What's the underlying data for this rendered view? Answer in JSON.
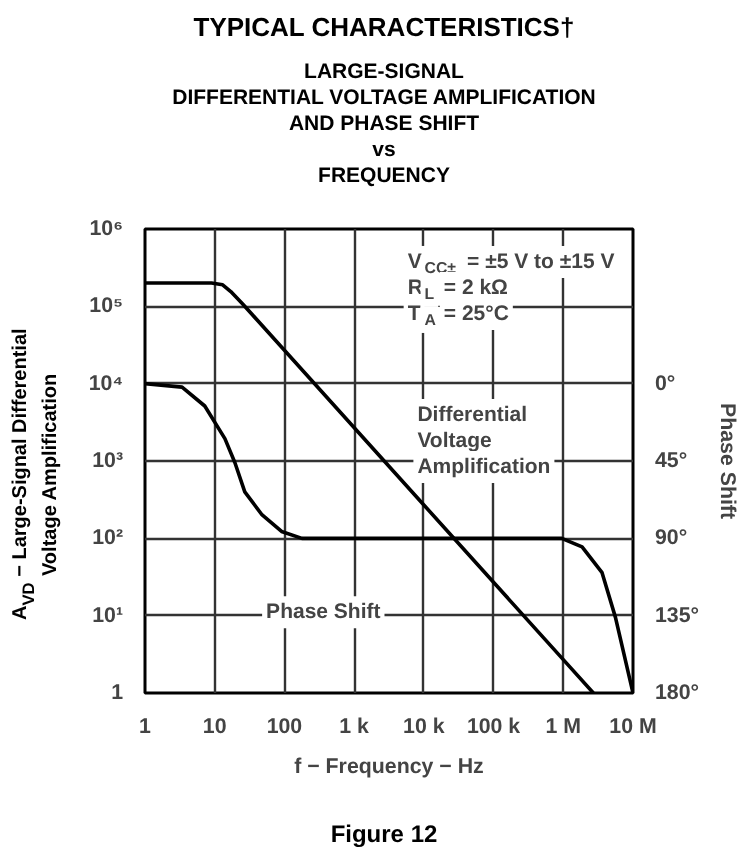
{
  "chart_data": {
    "type": "line",
    "title": "TYPICAL CHARACTERISTICS†",
    "subtitle": "LARGE-SIGNAL\nDIFFERENTIAL VOLTAGE AMPLIFICATION\nAND PHASE SHIFT\nvs\nFREQUENCY",
    "xlabel": "f − Frequency − Hz",
    "ylabel": "A$_{VD}$ − Large-Signal Differential\nVoltage Amplification",
    "y2label": "Phase Shift",
    "log": "xy",
    "grid": true,
    "xlim": [
      1,
      10000000
    ],
    "ylim": [
      1,
      1000000
    ],
    "y2lim": [
      180,
      -90
    ],
    "xticks": [
      1,
      10,
      100,
      {
        "value": 1000,
        "label": "1 k"
      },
      {
        "value": 10000,
        "label": "10 k"
      },
      {
        "value": 100000,
        "label": "100 k"
      },
      {
        "value": 1000000,
        "label": "1 M"
      },
      {
        "value": 10000000,
        "label": "10 M"
      }
    ],
    "yticks": [
      1,
      {
        "value": 10,
        "label": "10¹"
      },
      {
        "value": 100,
        "label": "10²"
      },
      {
        "value": 1000,
        "label": "10³"
      },
      {
        "value": 10000,
        "label": "10⁴"
      },
      {
        "value": 100000,
        "label": "10⁵"
      },
      {
        "value": 1000000,
        "label": "10⁶"
      }
    ],
    "y2ticks": [
      {
        "value": 0,
        "label": "0°"
      },
      {
        "value": 45,
        "label": "45°"
      },
      {
        "value": 90,
        "label": "90°"
      },
      {
        "value": 135,
        "label": "135°"
      },
      {
        "value": 180,
        "label": "180°"
      }
    ],
    "series": [
      {
        "color": "#000000",
        "x": [
          1,
          9,
          13,
          17,
          25,
          100,
          10000,
          1000000,
          2700000
        ],
        "values": [
          200000,
          200000,
          190000,
          155000,
          108000,
          27000,
          270,
          2.7,
          1
        ]
      },
      {
        "color": "#000000",
        "axis": "y2",
        "x": [
          1,
          3.4,
          7.2,
          14,
          19.5,
          27,
          47,
          91,
          178,
          950000,
          1860000,
          3600000,
          5600000,
          10000000
        ],
        "values": [
          0,
          2,
          13,
          32,
          46,
          63,
          76,
          86,
          90,
          90,
          95,
          110,
          136,
          180
        ]
      }
    ],
    "annotations": [
      "Differential\nVoltage\nAmplification",
      "Phase Shift",
      "V$_{CC±}$ = ±5 V to ±15 V\nR$_{L}$ = 2 kΩ\nT$_{A}$ = 25°C",
      "Figure 12"
    ]
  }
}
